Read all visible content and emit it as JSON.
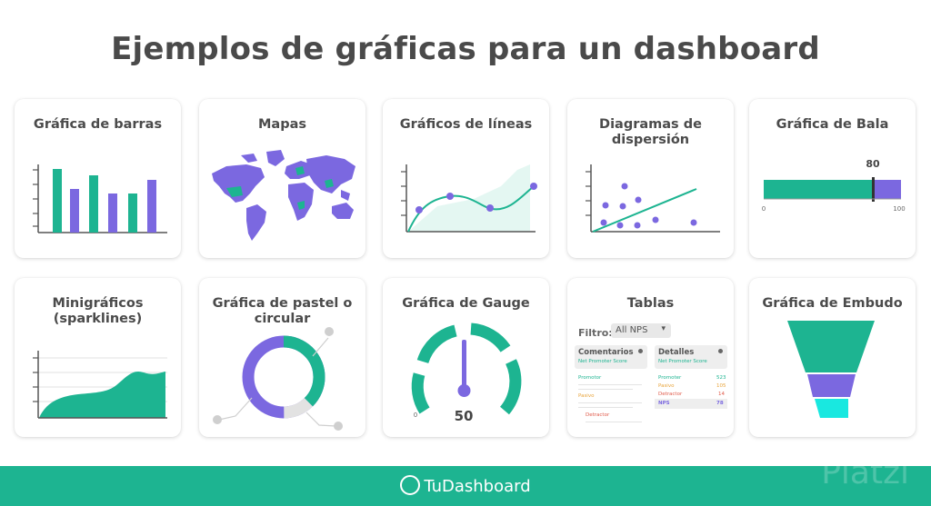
{
  "page": {
    "title": "Ejemplos de gráficas para un dashboard",
    "brand": "TuDashboard",
    "watermark": "Platzi"
  },
  "colors": {
    "green": "#1db491",
    "purple": "#7b68e0",
    "cyan": "#19e8e0",
    "gray": "#cccccc"
  },
  "cards": [
    {
      "title": "Gráfica de barras"
    },
    {
      "title": "Mapas"
    },
    {
      "title": "Gráficos de líneas"
    },
    {
      "title": "Diagramas de dispersión"
    },
    {
      "title": "Gráfica de Bala"
    },
    {
      "title": "Minigráficos (sparklines)"
    },
    {
      "title": "Gráfica de pastel o circular"
    },
    {
      "title": "Gráfica de Gauge"
    },
    {
      "title": "Tablas"
    },
    {
      "title": "Gráfica de Embudo"
    }
  ],
  "bullet": {
    "value": 80,
    "min": 0,
    "max": 100,
    "value_label": "80",
    "min_label": "0",
    "max_label": "100"
  },
  "gauge": {
    "value": 50,
    "min": 0,
    "value_label": "50",
    "min_label": "0"
  },
  "table": {
    "filter_label": "Filtro:",
    "filter_value": "All NPS",
    "panels": [
      {
        "title": "Comentarios",
        "subtitle": "Net Promoter Score",
        "rows": [
          "Promotor",
          "Pasivo",
          "Detractor"
        ]
      },
      {
        "title": "Detalles",
        "subtitle": "Net Promoter Score",
        "rows": [
          {
            "label": "Promoter",
            "value": "523"
          },
          {
            "label": "Pasivo",
            "value": "105"
          },
          {
            "label": "Detractor",
            "value": "14"
          },
          {
            "label": "NPS",
            "value": "78"
          }
        ]
      }
    ]
  }
}
